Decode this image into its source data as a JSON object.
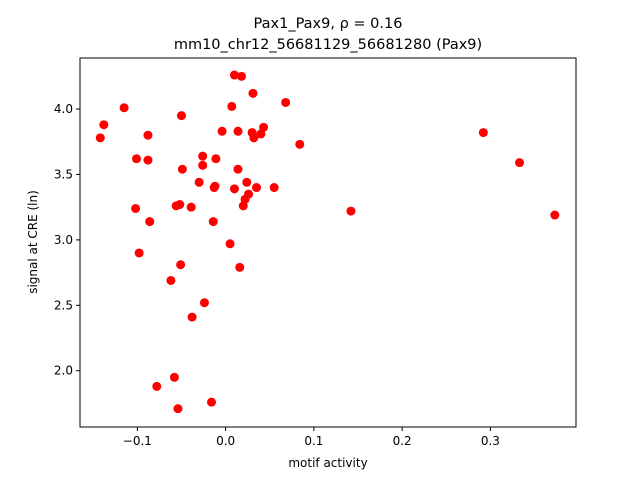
{
  "chart_data": {
    "type": "scatter",
    "title_line1": "Pax1_Pax9, ρ = 0.16",
    "title_line2": "mm10_chr12_56681129_56681280 (Pax9)",
    "xlabel": "motif activity",
    "ylabel": "signal at CRE (ln)",
    "xlim": [
      -0.165,
      0.397
    ],
    "ylim": [
      1.57,
      4.39
    ],
    "xticks": [
      -0.1,
      0.0,
      0.1,
      0.2,
      0.3
    ],
    "xtick_labels": [
      "−0.1",
      "0.0",
      "0.1",
      "0.2",
      "0.3"
    ],
    "yticks": [
      2.0,
      2.5,
      3.0,
      3.5,
      4.0
    ],
    "ytick_labels": [
      "2.0",
      "2.5",
      "3.0",
      "3.5",
      "4.0"
    ],
    "grid": false,
    "marker_color": "#ff0000",
    "points": [
      {
        "x": -0.142,
        "y": 3.78
      },
      {
        "x": -0.138,
        "y": 3.88
      },
      {
        "x": -0.115,
        "y": 4.01
      },
      {
        "x": -0.101,
        "y": 3.62
      },
      {
        "x": -0.102,
        "y": 3.24
      },
      {
        "x": -0.098,
        "y": 2.9
      },
      {
        "x": -0.088,
        "y": 3.8
      },
      {
        "x": -0.088,
        "y": 3.61
      },
      {
        "x": -0.086,
        "y": 3.14
      },
      {
        "x": -0.078,
        "y": 1.88
      },
      {
        "x": -0.062,
        "y": 2.69
      },
      {
        "x": -0.058,
        "y": 1.95
      },
      {
        "x": -0.056,
        "y": 3.26
      },
      {
        "x": -0.054,
        "y": 1.71
      },
      {
        "x": -0.052,
        "y": 3.27
      },
      {
        "x": -0.051,
        "y": 2.81
      },
      {
        "x": -0.05,
        "y": 3.95
      },
      {
        "x": -0.049,
        "y": 3.54
      },
      {
        "x": -0.039,
        "y": 3.25
      },
      {
        "x": -0.038,
        "y": 2.41
      },
      {
        "x": -0.03,
        "y": 3.44
      },
      {
        "x": -0.026,
        "y": 3.64
      },
      {
        "x": -0.026,
        "y": 3.57
      },
      {
        "x": -0.024,
        "y": 2.52
      },
      {
        "x": -0.016,
        "y": 1.76
      },
      {
        "x": -0.014,
        "y": 3.14
      },
      {
        "x": -0.012,
        "y": 3.41
      },
      {
        "x": -0.013,
        "y": 3.4
      },
      {
        "x": -0.011,
        "y": 3.62
      },
      {
        "x": -0.004,
        "y": 3.83
      },
      {
        "x": 0.005,
        "y": 2.97
      },
      {
        "x": 0.007,
        "y": 4.02
      },
      {
        "x": 0.01,
        "y": 4.26
      },
      {
        "x": 0.01,
        "y": 3.39
      },
      {
        "x": 0.014,
        "y": 3.83
      },
      {
        "x": 0.014,
        "y": 3.54
      },
      {
        "x": 0.016,
        "y": 2.79
      },
      {
        "x": 0.018,
        "y": 4.25
      },
      {
        "x": 0.02,
        "y": 3.26
      },
      {
        "x": 0.022,
        "y": 3.31
      },
      {
        "x": 0.024,
        "y": 3.44
      },
      {
        "x": 0.026,
        "y": 3.35
      },
      {
        "x": 0.03,
        "y": 3.82
      },
      {
        "x": 0.031,
        "y": 4.12
      },
      {
        "x": 0.032,
        "y": 3.78
      },
      {
        "x": 0.035,
        "y": 3.4
      },
      {
        "x": 0.04,
        "y": 3.81
      },
      {
        "x": 0.043,
        "y": 3.86
      },
      {
        "x": 0.055,
        "y": 3.4
      },
      {
        "x": 0.068,
        "y": 4.05
      },
      {
        "x": 0.084,
        "y": 3.73
      },
      {
        "x": 0.142,
        "y": 3.22
      },
      {
        "x": 0.292,
        "y": 3.82
      },
      {
        "x": 0.333,
        "y": 3.59
      },
      {
        "x": 0.373,
        "y": 3.19
      }
    ]
  }
}
